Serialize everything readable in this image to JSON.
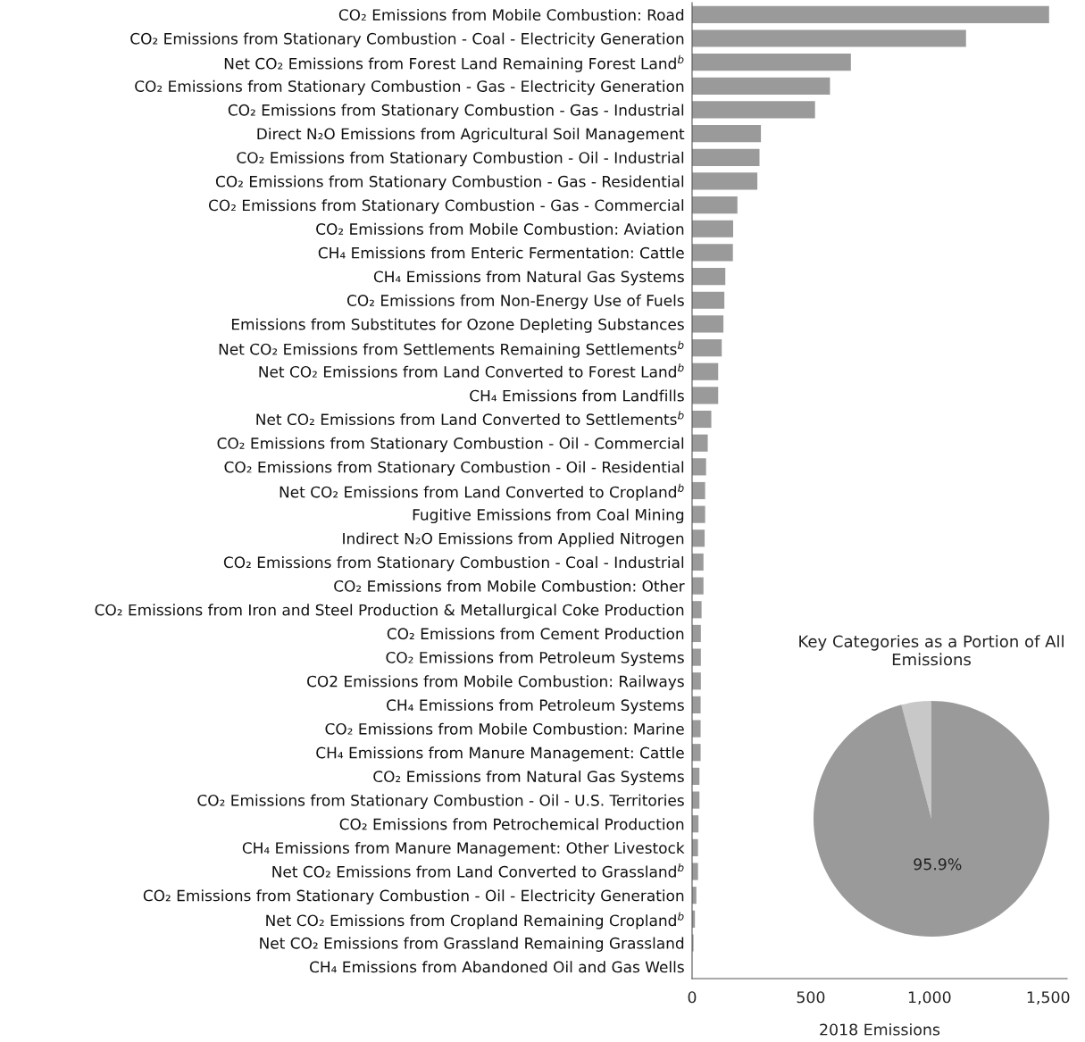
{
  "chart_data": [
    {
      "type": "bar",
      "orientation": "horizontal",
      "xlabel": "2018 Emissions",
      "color": "#9a9a9a",
      "grid": false,
      "categories": [
        "CO₂ Emissions from Mobile Combustion: Road",
        "CO₂ Emissions from Stationary Combustion - Coal - Electricity Generation",
        "Net CO₂ Emissions from Forest Land Remaining Forest Land$^{b}$",
        "CO₂ Emissions from Stationary Combustion - Gas - Electricity Generation",
        "CO₂ Emissions from Stationary Combustion - Gas - Industrial",
        "Direct N₂O Emissions from Agricultural Soil Management",
        "CO₂ Emissions from Stationary Combustion - Oil - Industrial",
        "CO₂ Emissions from Stationary Combustion - Gas - Residential",
        "CO₂ Emissions from Stationary Combustion - Gas - Commercial",
        "CO₂ Emissions from Mobile Combustion: Aviation",
        "CH₄ Emissions from Enteric Fermentation: Cattle",
        "CH₄ Emissions from Natural Gas Systems",
        "CO₂ Emissions from Non-Energy Use of Fuels",
        "Emissions from Substitutes for Ozone Depleting Substances",
        "Net CO₂ Emissions from Settlements Remaining Settlements$^{b}$",
        "Net CO₂ Emissions from Land Converted to Forest Land$^{b}$",
        "CH₄ Emissions from Landfills",
        "Net CO₂ Emissions from Land Converted to Settlements$^{b}$",
        "CO₂ Emissions from Stationary Combustion - Oil - Commercial",
        "CO₂ Emissions from Stationary Combustion - Oil - Residential",
        "Net CO₂ Emissions from Land Converted to Cropland$^{b}$",
        "Fugitive Emissions from Coal Mining",
        "Indirect N₂O Emissions from Applied Nitrogen",
        "CO₂ Emissions from Stationary Combustion - Coal - Industrial",
        "CO₂ Emissions from Mobile Combustion: Other",
        "CO₂ Emissions from Iron and Steel Production & Metallurgical Coke Production",
        "CO₂ Emissions from Cement Production",
        "CO₂ Emissions from Petroleum Systems",
        "CO2 Emissions from Mobile Combustion: Railways",
        "CH₄ Emissions from Petroleum Systems",
        "CO₂ Emissions from Mobile Combustion: Marine",
        "CH₄ Emissions from Manure Management: Cattle",
        "CO₂ Emissions from Natural Gas Systems",
        "CO₂ Emissions from Stationary Combustion - Oil - U.S. Territories",
        "CO₂ Emissions from Petrochemical Production",
        "CH₄ Emissions from Manure Management: Other Livestock",
        "Net CO₂ Emissions from Land Converted to Grassland$^{b}$",
        "CO₂ Emissions from Stationary Combustion - Oil - Electricity Generation",
        "Net CO₂ Emissions from Cropland Remaining Cropland$^{b}$",
        "Net CO₂ Emissions from Grassland Remaining Grassland",
        "CH₄ Emissions from Abandoned Oil and Gas Wells"
      ],
      "values": [
        1504,
        1154,
        669,
        581,
        518,
        290,
        284,
        275,
        191,
        173,
        172,
        140,
        136,
        132,
        125,
        110,
        110,
        81,
        66,
        59,
        55,
        55,
        53,
        48,
        48,
        40,
        37,
        37,
        37,
        36,
        36,
        36,
        31,
        31,
        27,
        25,
        25,
        18,
        12,
        6,
        null
      ],
      "xlim": [
        0,
        1580
      ],
      "xticks": [
        0,
        500,
        {
          "value": 1000,
          "label": "1,000"
        },
        {
          "value": 1500,
          "label": "1,500"
        }
      ]
    },
    {
      "type": "pie",
      "title": "Key Categories as a Portion of All Emissions",
      "categories": [
        null,
        null
      ],
      "values": [
        4.1,
        95.9
      ],
      "colors": [
        "#c8c8c8",
        "#9a9a9a"
      ],
      "value_labels": [
        null,
        "95.9%"
      ]
    }
  ]
}
